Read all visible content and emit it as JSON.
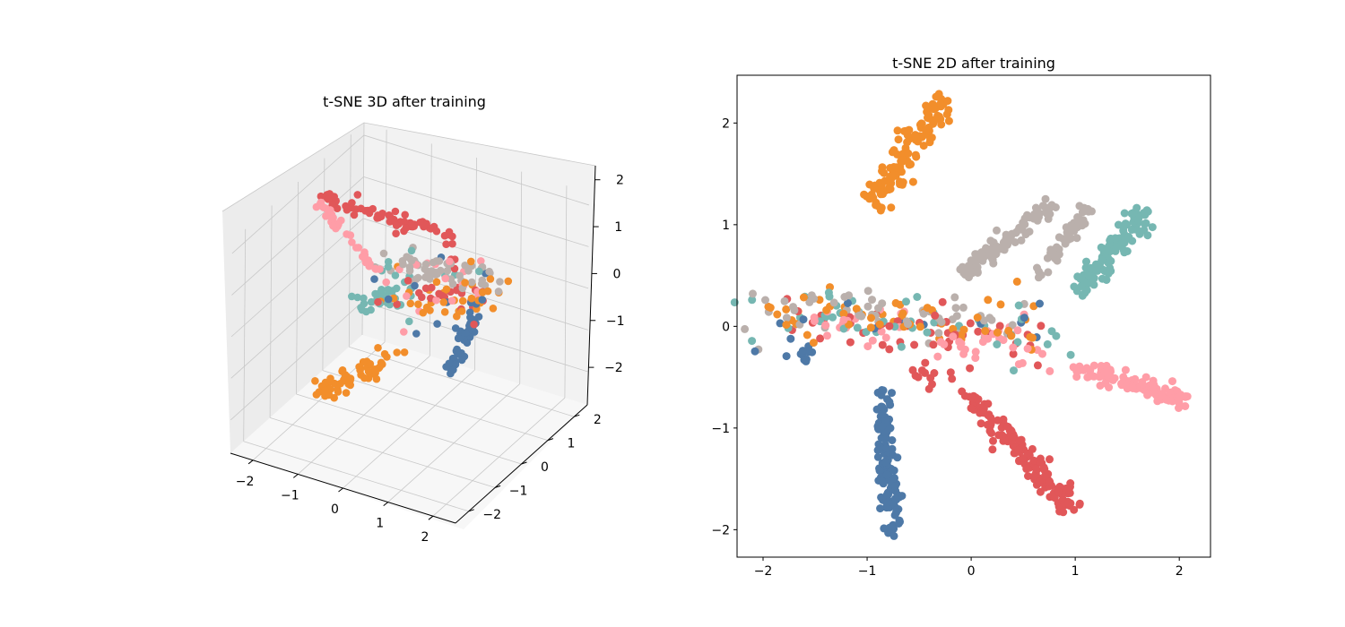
{
  "colors": {
    "blue": "#4e79a7",
    "orange": "#f28e2b",
    "red": "#e15759",
    "teal": "#76b7b2",
    "gray": "#bab0ac",
    "pink": "#ff9da7"
  },
  "chart_data": [
    {
      "type": "scatter",
      "projection": "3d",
      "title": "t-SNE 3D after training",
      "xticks": [
        "−2",
        "−1",
        "0",
        "1",
        "2"
      ],
      "yticks": [
        "−2",
        "−1",
        "0",
        "1",
        "2"
      ],
      "zticks": [
        "−2",
        "−1",
        "0",
        "1",
        "2"
      ],
      "xlim": [
        -2.5,
        2.5
      ],
      "ylim": [
        -2.5,
        2.5
      ],
      "zlim": [
        -2.8,
        2.3
      ],
      "grid": true,
      "legend": "none",
      "series": [
        {
          "color": "blue",
          "clusters": [
            {
              "from": [
                0.9,
                0.0,
                -1.1
              ],
              "to": [
                0.65,
                1.4,
                -0.7
              ],
              "n": 45,
              "spread": 0.07
            },
            {
              "from": [
                -0.3,
                0.3,
                0.3
              ],
              "to": [
                0.9,
                0.4,
                0.5
              ],
              "n": 14,
              "spread": 0.35
            }
          ]
        },
        {
          "color": "orange",
          "clusters": [
            {
              "from": [
                -1.8,
                -0.2,
                -2.4
              ],
              "to": [
                -0.4,
                0.1,
                -1.2
              ],
              "n": 55,
              "spread": 0.12
            },
            {
              "from": [
                -0.2,
                0.3,
                0.0
              ],
              "to": [
                1.9,
                0.6,
                0.7
              ],
              "n": 38,
              "spread": 0.3
            }
          ]
        },
        {
          "color": "red",
          "clusters": [
            {
              "from": [
                -2.2,
                0.5,
                1.7
              ],
              "to": [
                0.0,
                1.6,
                0.9
              ],
              "n": 70,
              "spread": 0.1
            },
            {
              "from": [
                -0.5,
                0.2,
                0.2
              ],
              "to": [
                1.5,
                0.8,
                0.6
              ],
              "n": 26,
              "spread": 0.3
            }
          ]
        },
        {
          "color": "teal",
          "clusters": [
            {
              "from": [
                -1.5,
                0.4,
                -0.6
              ],
              "to": [
                -0.6,
                0.7,
                -0.2
              ],
              "n": 30,
              "spread": 0.1
            },
            {
              "from": [
                -1.0,
                0.4,
                0.3
              ],
              "to": [
                0.8,
                0.6,
                0.6
              ],
              "n": 16,
              "spread": 0.35
            }
          ]
        },
        {
          "color": "gray",
          "clusters": [
            {
              "from": [
                -0.6,
                0.4,
                0.7
              ],
              "to": [
                1.6,
                0.7,
                0.9
              ],
              "n": 55,
              "spread": 0.2
            }
          ]
        },
        {
          "color": "pink",
          "clusters": [
            {
              "from": [
                -2.3,
                0.3,
                1.8
              ],
              "to": [
                -0.6,
                0.1,
                0.5
              ],
              "n": 42,
              "spread": 0.07
            },
            {
              "from": [
                -0.8,
                0.3,
                0.4
              ],
              "to": [
                1.4,
                0.6,
                0.6
              ],
              "n": 20,
              "spread": 0.3
            }
          ]
        }
      ]
    },
    {
      "type": "scatter",
      "title": "t-SNE 2D after training",
      "xticks": [
        -2,
        -1,
        0,
        1,
        2
      ],
      "yticks": [
        -2,
        -1,
        0,
        1,
        2
      ],
      "xtick_labels": [
        "−2",
        "−1",
        "0",
        "1",
        "2"
      ],
      "ytick_labels": [
        "−2",
        "−1",
        "0",
        "1",
        "2"
      ],
      "xlim": [
        -2.25,
        2.3
      ],
      "ylim": [
        -2.27,
        2.47
      ],
      "grid": false,
      "legend": "none",
      "series": [
        {
          "color": "blue",
          "clusters": [
            {
              "from": [
                -0.87,
                -0.62
              ],
              "to": [
                -0.75,
                -2.03
              ],
              "n": 120,
              "spread": 0.05
            },
            {
              "from": [
                -1.75,
                -0.2
              ],
              "to": [
                -1.5,
                -0.3
              ],
              "n": 12,
              "spread": 0.06
            },
            {
              "from": [
                -1.9,
                0.12
              ],
              "to": [
                0.8,
                0.0
              ],
              "n": 14,
              "spread": 0.15
            }
          ]
        },
        {
          "color": "orange",
          "clusters": [
            {
              "from": [
                -0.93,
                1.22
              ],
              "to": [
                -0.26,
                2.22
              ],
              "n": 130,
              "spread": 0.06
            },
            {
              "from": [
                -2.05,
                0.17
              ],
              "to": [
                0.6,
                0.0
              ],
              "n": 55,
              "spread": 0.14
            }
          ]
        },
        {
          "color": "red",
          "clusters": [
            {
              "from": [
                0.0,
                -0.7
              ],
              "to": [
                0.95,
                -1.77
              ],
              "n": 150,
              "spread": 0.055
            },
            {
              "from": [
                -1.8,
                0.1
              ],
              "to": [
                0.6,
                -0.1
              ],
              "n": 45,
              "spread": 0.16
            },
            {
              "from": [
                -0.55,
                -0.4
              ],
              "to": [
                -0.2,
                -0.5
              ],
              "n": 12,
              "spread": 0.06
            }
          ]
        },
        {
          "color": "teal",
          "clusters": [
            {
              "from": [
                1.0,
                0.3
              ],
              "to": [
                1.65,
                1.12
              ],
              "n": 110,
              "spread": 0.06
            },
            {
              "from": [
                -2.05,
                0.18
              ],
              "to": [
                0.7,
                -0.1
              ],
              "n": 45,
              "spread": 0.16
            }
          ]
        },
        {
          "color": "gray",
          "clusters": [
            {
              "from": [
                -0.1,
                0.5
              ],
              "to": [
                0.78,
                1.2
              ],
              "n": 100,
              "spread": 0.045
            },
            {
              "from": [
                0.65,
                0.5
              ],
              "to": [
                1.15,
                1.2
              ],
              "n": 50,
              "spread": 0.04
            },
            {
              "from": [
                -2.0,
                0.15
              ],
              "to": [
                0.5,
                0.1
              ],
              "n": 55,
              "spread": 0.1
            }
          ]
        },
        {
          "color": "pink",
          "clusters": [
            {
              "from": [
                1.0,
                -0.4
              ],
              "to": [
                2.05,
                -0.72
              ],
              "n": 110,
              "spread": 0.04
            },
            {
              "from": [
                -1.5,
                0.07
              ],
              "to": [
                0.75,
                -0.3
              ],
              "n": 50,
              "spread": 0.13
            }
          ]
        }
      ]
    }
  ]
}
